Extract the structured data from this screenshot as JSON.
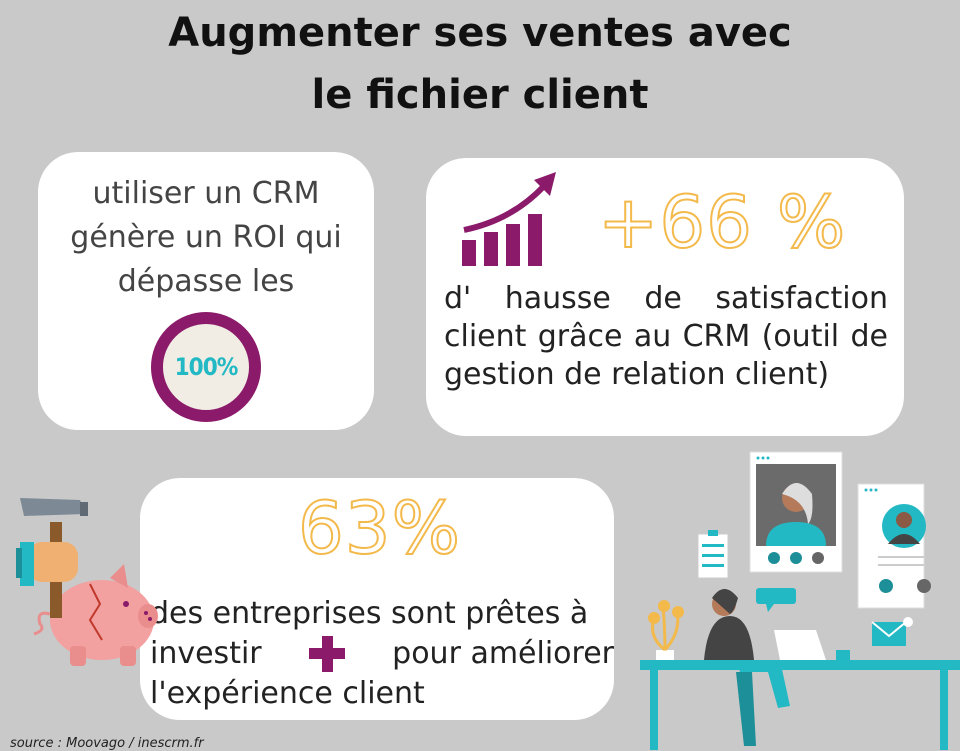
{
  "title": {
    "line1": "Augmenter ses ventes avec",
    "line2": "le fichier client"
  },
  "card_roi": {
    "line1": "utiliser un CRM",
    "line2": "génère un ROI qui",
    "line3": "dépasse les",
    "badge": "100%"
  },
  "card_satisfaction": {
    "stat": "+66 %",
    "description": "d' hausse de satisfaction client grâce au CRM (outil de gestion de relation client)"
  },
  "card_invest": {
    "stat": "63%",
    "line1": "des entreprises sont prêtes à",
    "word_before_plus": "investir",
    "word_after_plus": "pour améliorer",
    "line3": "l'expérience client"
  },
  "source": "source : Moovago / inescrm.fr",
  "colors": {
    "accent_purple": "#8b1b6a",
    "accent_yellow": "#f3b94b",
    "accent_teal": "#23b9c4",
    "background": "#c9c9c9"
  },
  "icons": [
    "growth-chart-icon",
    "piggy-bank-hammer-icon",
    "video-call-illustration",
    "contact-card-icon",
    "checklist-icon",
    "chat-bubble-icon",
    "email-icon"
  ]
}
